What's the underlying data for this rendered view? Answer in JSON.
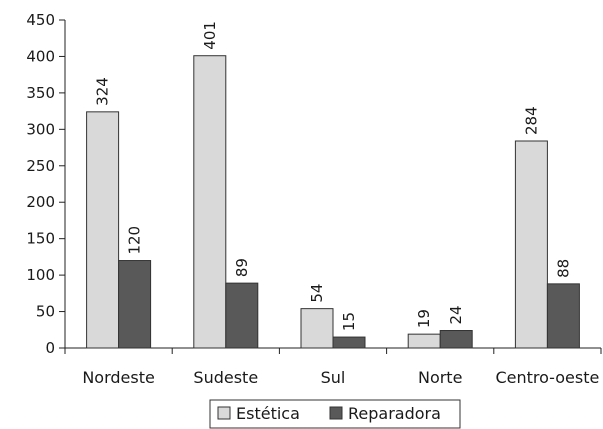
{
  "chart_data": {
    "type": "bar",
    "categories": [
      "Nordeste",
      "Sudeste",
      "Sul",
      "Norte",
      "Centro-oeste"
    ],
    "series": [
      {
        "name": "Estética",
        "values": [
          324,
          401,
          54,
          19,
          284
        ],
        "color": "#d9d9d9"
      },
      {
        "name": "Reparadora",
        "values": [
          120,
          89,
          15,
          24,
          88
        ],
        "color": "#595959"
      }
    ],
    "ylim": [
      0,
      450
    ],
    "yticks": [
      0,
      50,
      100,
      150,
      200,
      250,
      300,
      350,
      400,
      450
    ],
    "grid": false,
    "legend_position": "bottom",
    "data_labels": true,
    "data_label_rotation": "vertical"
  }
}
